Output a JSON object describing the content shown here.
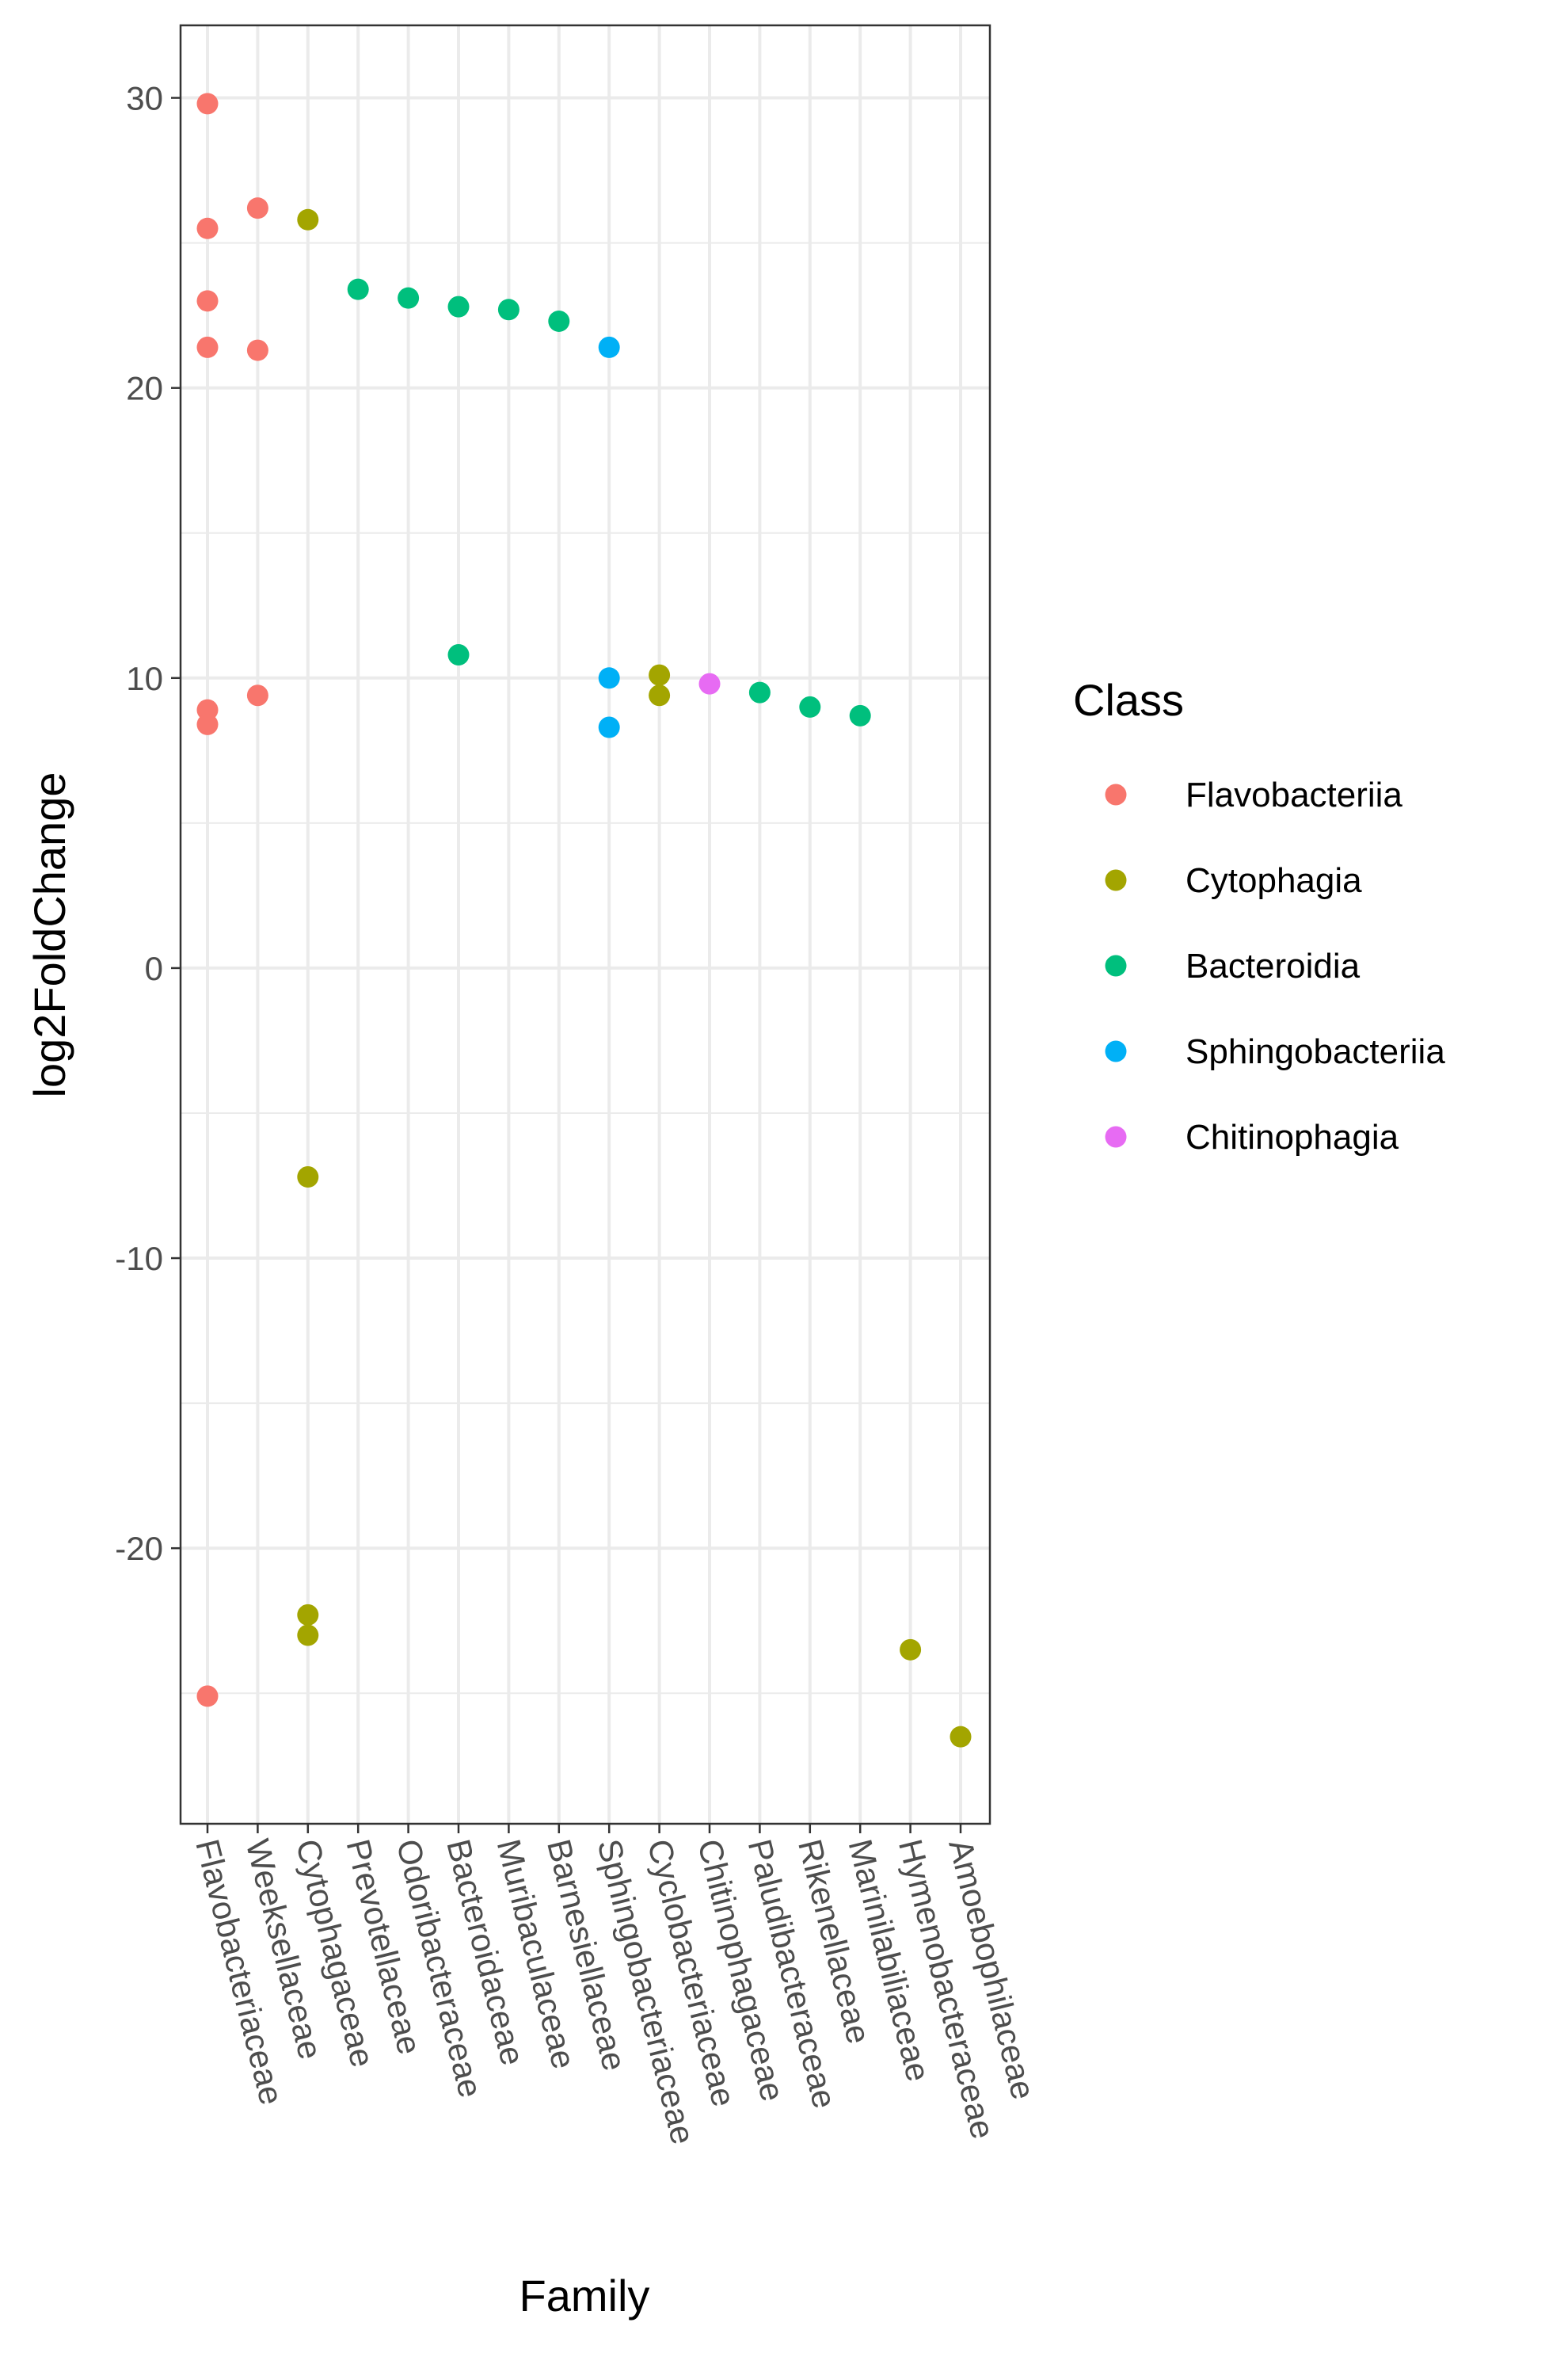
{
  "chart_data": {
    "type": "scatter",
    "xlabel": "Family",
    "ylabel": "log2FoldChange",
    "ylim": [
      -29.5,
      32.5
    ],
    "y_ticks": [
      30,
      20,
      10,
      0,
      -10,
      -20
    ],
    "y_tick_labels": [
      "30",
      "20",
      "10",
      "0",
      "-10",
      "-20"
    ],
    "grid": true,
    "categories": [
      "Flavobacteriaceae",
      "Weeksellaceae",
      "Cytophagaceae",
      "Prevotellaceae",
      "Odoribacteraceae",
      "Bacteroidaceae",
      "Muribaculaceae",
      "Barnesiellaceae",
      "Sphingobacteriaceae",
      "Cyclobacteriaceae",
      "Chitinophagaceae",
      "Paludibacteraceae",
      "Rikenellaceae",
      "Marinilabiliaceae",
      "Hymenobacteraceae",
      "Amoebophilaceae"
    ],
    "legend": {
      "title": "Class",
      "position": "right",
      "entries": [
        {
          "name": "Flavobacteriia",
          "color": "#F8766D"
        },
        {
          "name": "Cytophagia",
          "color": "#A3A500"
        },
        {
          "name": "Bacteroidia",
          "color": "#00BF7D"
        },
        {
          "name": "Sphingobacteriia",
          "color": "#00B0F6"
        },
        {
          "name": "Chitinophagia",
          "color": "#E76BF3"
        }
      ]
    },
    "series": [
      {
        "name": "Flavobacteriia",
        "color": "#F8766D",
        "points": [
          {
            "x": "Flavobacteriaceae",
            "y": 29.8
          },
          {
            "x": "Flavobacteriaceae",
            "y": 25.5
          },
          {
            "x": "Flavobacteriaceae",
            "y": 23.0
          },
          {
            "x": "Flavobacteriaceae",
            "y": 21.4
          },
          {
            "x": "Flavobacteriaceae",
            "y": 8.9
          },
          {
            "x": "Flavobacteriaceae",
            "y": 8.4
          },
          {
            "x": "Flavobacteriaceae",
            "y": -25.1
          },
          {
            "x": "Weeksellaceae",
            "y": 26.2
          },
          {
            "x": "Weeksellaceae",
            "y": 21.3
          },
          {
            "x": "Weeksellaceae",
            "y": 9.4
          }
        ]
      },
      {
        "name": "Cytophagia",
        "color": "#A3A500",
        "points": [
          {
            "x": "Cytophagaceae",
            "y": 25.8
          },
          {
            "x": "Cytophagaceae",
            "y": -7.2
          },
          {
            "x": "Cytophagaceae",
            "y": -22.3
          },
          {
            "x": "Cytophagaceae",
            "y": -23.0
          },
          {
            "x": "Cyclobacteriaceae",
            "y": 10.1
          },
          {
            "x": "Cyclobacteriaceae",
            "y": 9.4
          },
          {
            "x": "Hymenobacteraceae",
            "y": -23.5
          },
          {
            "x": "Amoebophilaceae",
            "y": -26.5
          }
        ]
      },
      {
        "name": "Bacteroidia",
        "color": "#00BF7D",
        "points": [
          {
            "x": "Prevotellaceae",
            "y": 23.4
          },
          {
            "x": "Odoribacteraceae",
            "y": 23.1
          },
          {
            "x": "Bacteroidaceae",
            "y": 22.8
          },
          {
            "x": "Bacteroidaceae",
            "y": 10.8
          },
          {
            "x": "Muribaculaceae",
            "y": 22.7
          },
          {
            "x": "Barnesiellaceae",
            "y": 22.3
          },
          {
            "x": "Paludibacteraceae",
            "y": 9.5
          },
          {
            "x": "Rikenellaceae",
            "y": 9.0
          },
          {
            "x": "Marinilabiliaceae",
            "y": 8.7
          }
        ]
      },
      {
        "name": "Sphingobacteriia",
        "color": "#00B0F6",
        "points": [
          {
            "x": "Sphingobacteriaceae",
            "y": 21.4
          },
          {
            "x": "Sphingobacteriaceae",
            "y": 10.0
          },
          {
            "x": "Sphingobacteriaceae",
            "y": 8.3
          }
        ]
      },
      {
        "name": "Chitinophagia",
        "color": "#E76BF3",
        "points": [
          {
            "x": "Chitinophagaceae",
            "y": 9.8
          }
        ]
      }
    ]
  }
}
